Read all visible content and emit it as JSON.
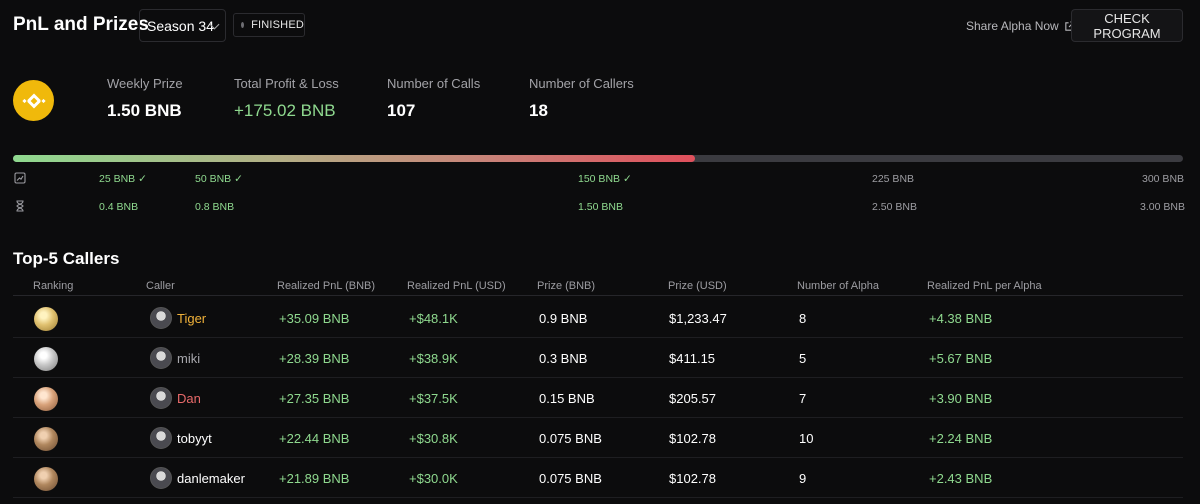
{
  "header": {
    "title": "PnL and Prizes",
    "season": "Season 34",
    "status": "FINISHED",
    "share_label": "Share Alpha Now",
    "check_button": "CHECK PROGRAM"
  },
  "stats": [
    {
      "label": "Weekly Prize",
      "value": "1.50 BNB",
      "color": "white"
    },
    {
      "label": "Total Profit & Loss",
      "value": "+175.02 BNB",
      "color": "green"
    },
    {
      "label": "Number of Calls",
      "value": "107",
      "color": "white"
    },
    {
      "label": "Number of Callers",
      "value": "18",
      "color": "white"
    }
  ],
  "progress": {
    "fraction": 0.583,
    "pnl_tiers": [
      "25 BNB ✓",
      "50 BNB ✓",
      "150 BNB ✓",
      "225 BNB",
      "300 BNB"
    ],
    "prize_tiers": [
      "0.4 BNB",
      "0.8 BNB",
      "1.50 BNB",
      "2.50 BNB",
      "3.00 BNB"
    ],
    "reached": [
      true,
      true,
      true,
      false,
      false
    ]
  },
  "table": {
    "title": "Top-5 Callers",
    "headers": [
      "Ranking",
      "Caller",
      "Realized PnL (BNB)",
      "Realized PnL (USD)",
      "Prize (BNB)",
      "Prize (USD)",
      "Number of Alpha",
      "Realized PnL per Alpha"
    ],
    "rows": [
      {
        "caller": "Tiger",
        "name_color": "#f0b23a",
        "medal": "gold",
        "pnl_bnb": "+35.09 BNB",
        "pnl_usd": "+$48.1K",
        "prize_bnb": "0.9 BNB",
        "prize_usd": "$1,233.47",
        "alpha": "8",
        "per_alpha": "+4.38 BNB"
      },
      {
        "caller": "miki",
        "name_color": "#a8a8ad",
        "medal": "silver",
        "pnl_bnb": "+28.39 BNB",
        "pnl_usd": "+$38.9K",
        "prize_bnb": "0.3 BNB",
        "prize_usd": "$411.15",
        "alpha": "5",
        "per_alpha": "+5.67 BNB"
      },
      {
        "caller": "Dan",
        "name_color": "#e86a6a",
        "medal": "bronze",
        "pnl_bnb": "+27.35 BNB",
        "pnl_usd": "+$37.5K",
        "prize_bnb": "0.15 BNB",
        "prize_usd": "$205.57",
        "alpha": "7",
        "per_alpha": "+3.90 BNB"
      },
      {
        "caller": "tobyyt",
        "name_color": "#ffffff",
        "medal": "copper",
        "pnl_bnb": "+22.44 BNB",
        "pnl_usd": "+$30.8K",
        "prize_bnb": "0.075 BNB",
        "prize_usd": "$102.78",
        "alpha": "10",
        "per_alpha": "+2.24 BNB"
      },
      {
        "caller": "danlemaker",
        "name_color": "#ffffff",
        "medal": "copper",
        "pnl_bnb": "+21.89 BNB",
        "pnl_usd": "+$30.0K",
        "prize_bnb": "0.075 BNB",
        "prize_usd": "$102.78",
        "alpha": "9",
        "per_alpha": "+2.43 BNB"
      }
    ]
  }
}
